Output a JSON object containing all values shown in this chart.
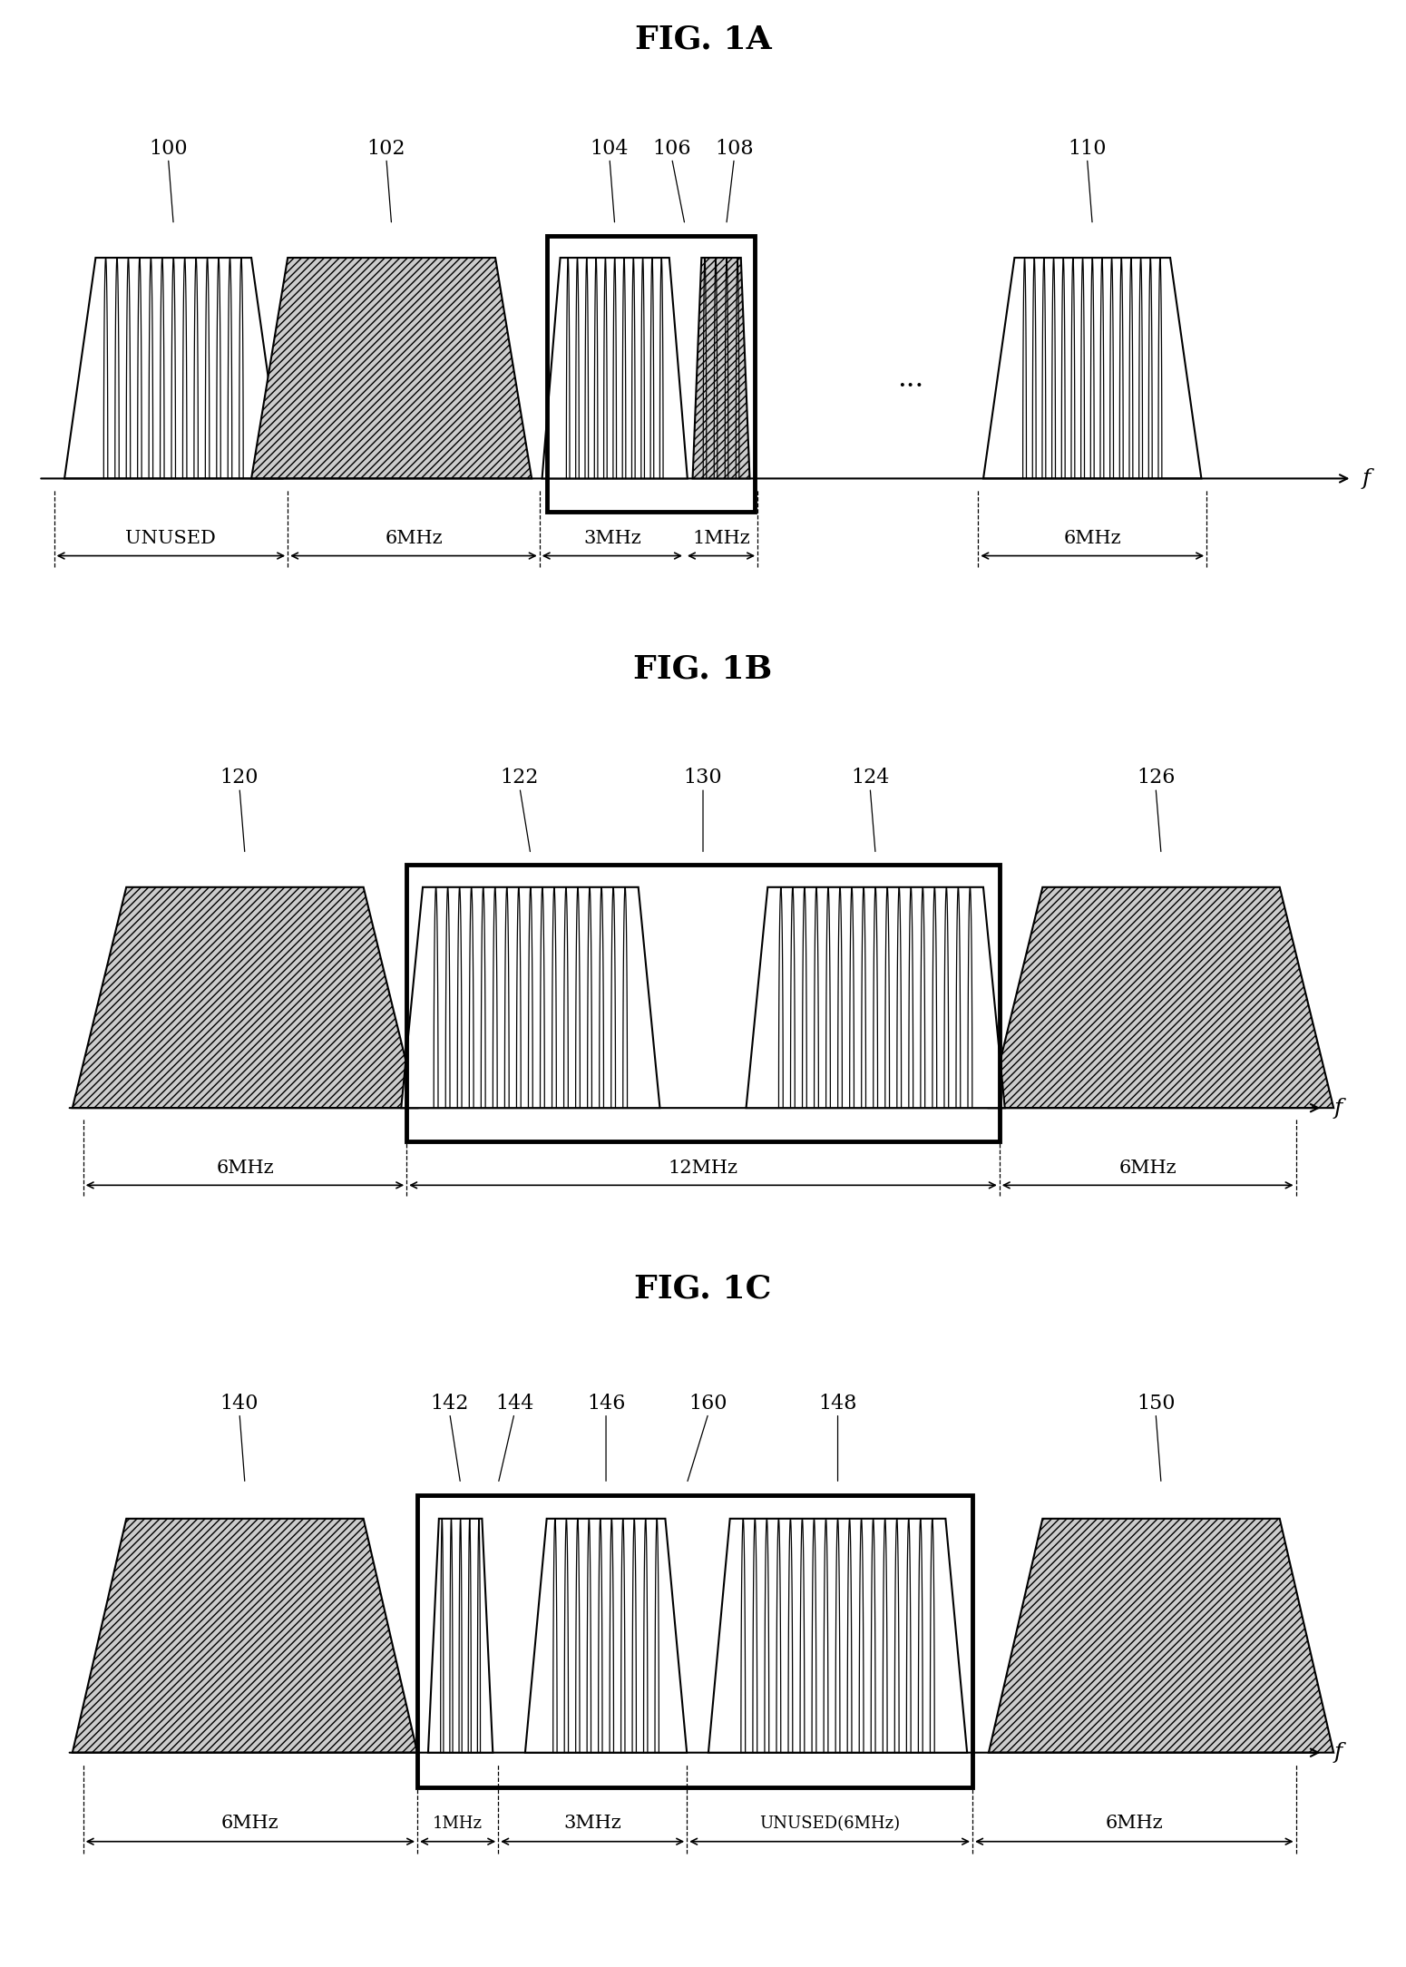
{
  "fig_title_1a": "FIG. 1A",
  "fig_title_1b": "FIG. 1B",
  "fig_title_1c": "FIG. 1C",
  "bg_color": "#ffffff",
  "thick_lw": 3.5,
  "thin_lw": 1.5,
  "title_fontsize": 26,
  "ref_fontsize": 16,
  "dim_fontsize": 15,
  "axis_label_fontsize": 18
}
